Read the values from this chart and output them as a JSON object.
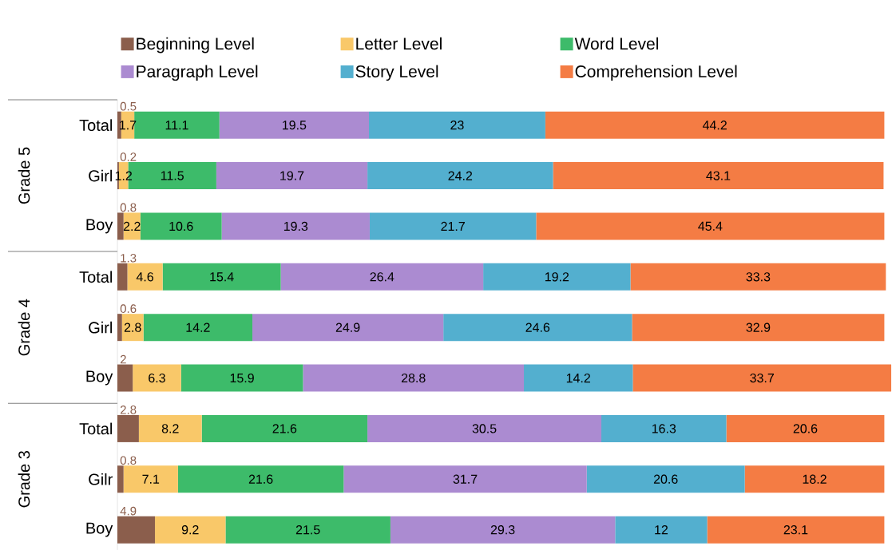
{
  "chart_data": {
    "type": "bar",
    "orientation": "horizontal",
    "stacked": true,
    "data_labels": true,
    "legend": "top",
    "tick_labels": "y",
    "xlim": [
      0,
      101
    ],
    "categories": [
      "Total",
      "Girl",
      "Boy",
      "Total",
      "Girl",
      "Boy",
      "Total",
      "Gilr",
      "Boy"
    ],
    "annotations": [
      "Grade 5",
      "Grade 4",
      "Grade 3"
    ],
    "series": [
      {
        "name": "Beginning Level",
        "color": "#8b5e4c",
        "values": [
          0.5,
          0.2,
          0.8,
          1.3,
          0.6,
          2,
          2.8,
          0.8,
          4.9
        ]
      },
      {
        "name": "Letter Level",
        "color": "#f9c869",
        "values": [
          1.7,
          1.2,
          2.2,
          4.6,
          2.8,
          6.3,
          8.2,
          7.1,
          9.2
        ]
      },
      {
        "name": "Word Level",
        "color": "#3dbb6a",
        "values": [
          11.1,
          11.5,
          10.6,
          15.4,
          14.2,
          15.9,
          21.6,
          21.6,
          21.5
        ]
      },
      {
        "name": "Paragraph Level",
        "color": "#ab8bd1",
        "values": [
          19.5,
          19.7,
          19.3,
          26.4,
          24.9,
          28.8,
          30.5,
          31.7,
          29.3
        ]
      },
      {
        "name": "Story Level",
        "color": "#53afcf",
        "values": [
          23,
          24.2,
          21.7,
          19.2,
          24.6,
          14.2,
          16.3,
          20.6,
          12
        ]
      },
      {
        "name": "Comprehension Level",
        "color": "#f47c44",
        "values": [
          44.2,
          43.1,
          45.4,
          33.3,
          32.9,
          33.7,
          20.6,
          18.2,
          23.1
        ]
      }
    ]
  }
}
